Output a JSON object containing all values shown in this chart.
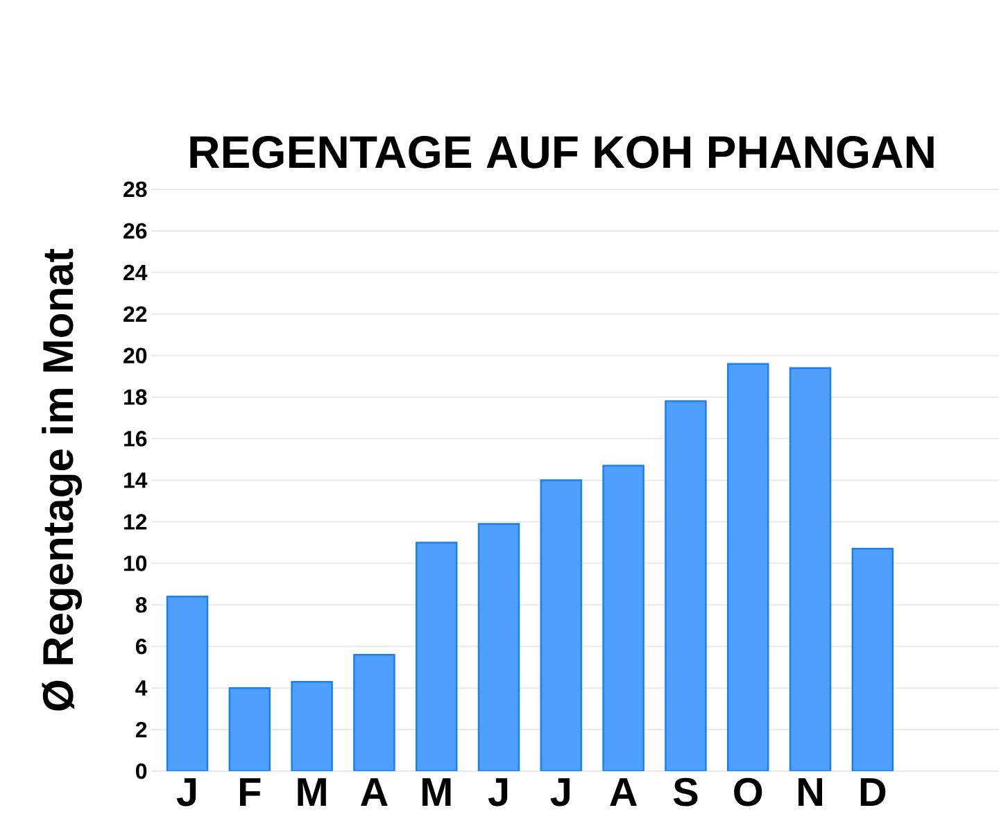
{
  "chart_data": {
    "type": "bar",
    "title": "REGENTAGE AUF KOH PHANGAN",
    "ylabel": "Ø Regentage im Monat",
    "categories": [
      "J",
      "F",
      "M",
      "A",
      "M",
      "J",
      "J",
      "A",
      "S",
      "O",
      "N",
      "D"
    ],
    "values": [
      8.4,
      4.0,
      4.3,
      5.6,
      11.0,
      11.9,
      14.0,
      14.7,
      17.8,
      19.6,
      19.4,
      10.7
    ],
    "color": "#4f9ffd",
    "ylim": [
      0,
      28
    ],
    "yticks": [
      0,
      2,
      4,
      6,
      8,
      10,
      12,
      14,
      16,
      18,
      20,
      22,
      24,
      26,
      28
    ],
    "grid": "y"
  }
}
